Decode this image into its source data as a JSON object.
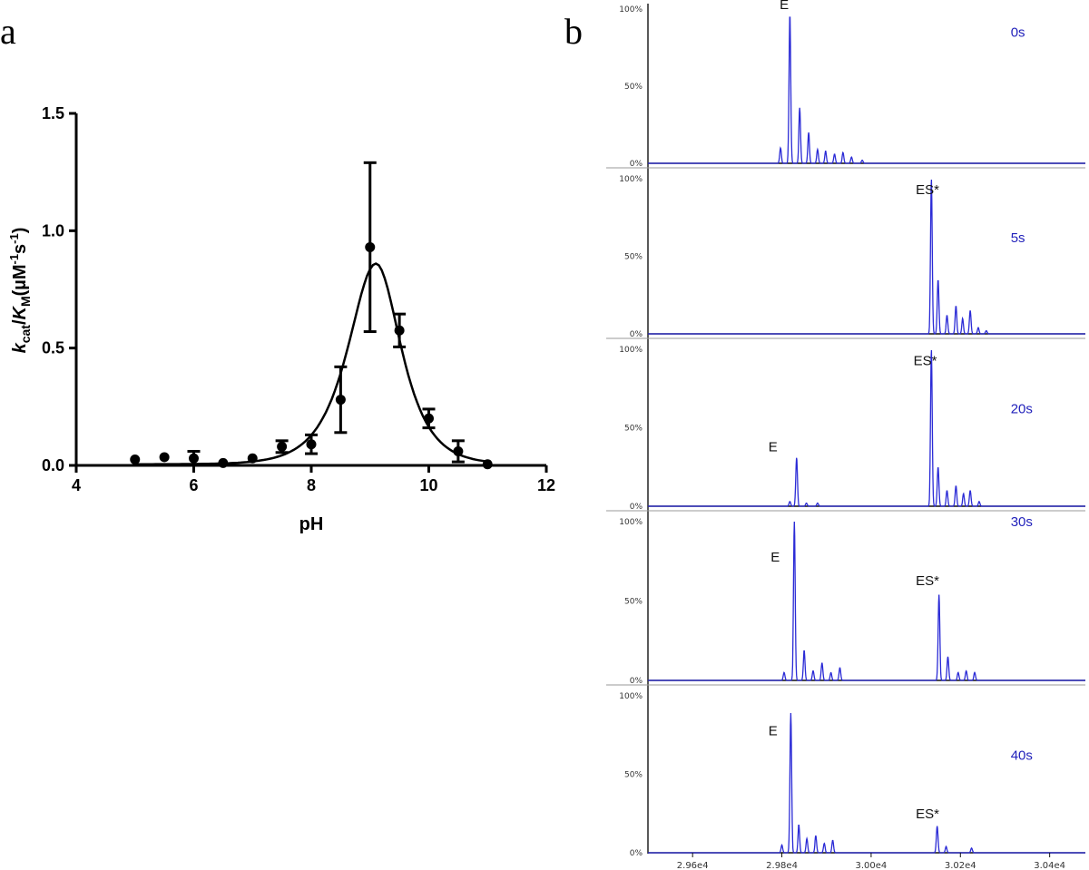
{
  "chart_data": [
    {
      "panel": "a",
      "type": "scatter",
      "title": "",
      "xlabel": "pH",
      "ylabel": "kcat/KM(µM-1s-1)",
      "ylabel_parts": {
        "k": "k",
        "cat": "cat",
        "slash": "/",
        "K": "K",
        "M": "M",
        "unit_open": "(µM",
        "exp1": "-1",
        "s": "s",
        "exp2": "-1",
        "unit_close": ")"
      },
      "xlim": [
        4,
        12
      ],
      "ylim": [
        0,
        1.5
      ],
      "xticks": [
        "4",
        "6",
        "8",
        "10",
        "12"
      ],
      "yticks": [
        "0.0",
        "0.5",
        "1.0",
        "1.5"
      ],
      "grid": false,
      "series": [
        {
          "x": [
            5,
            5.5,
            6,
            6.5,
            7,
            7.5,
            8,
            8.5,
            9,
            9.5,
            10,
            10.5,
            11
          ],
          "y": [
            0.025,
            0.035,
            0.03,
            0.01,
            0.03,
            0.08,
            0.09,
            0.28,
            0.93,
            0.575,
            0.2,
            0.06,
            0.005
          ],
          "err": [
            0,
            0,
            0.03,
            0,
            0,
            0.025,
            0.04,
            0.14,
            0.36,
            0.07,
            0.04,
            0.045,
            0
          ]
        }
      ],
      "fit_curve": {
        "peak_x": 9.1,
        "peak_y": 0.86,
        "baseline": 0.005
      }
    },
    {
      "panel": "b",
      "type": "line",
      "title": "",
      "xlim": [
        29500,
        30480
      ],
      "xticks": [
        "2.96e4",
        "2.98e4",
        "3.00e4",
        "3.02e4",
        "3.04e4"
      ],
      "xtick_values": [
        29600,
        29800,
        30000,
        30200,
        30400
      ],
      "yticks": [
        "100%",
        "50%",
        "0%"
      ],
      "line_color": "#2b2bd6",
      "spectra": [
        {
          "time": "0s",
          "labels": [
            {
              "text": "E",
              "x": 29795,
              "y": 100
            }
          ],
          "peaks": [
            {
              "x": 29818,
              "h": 97
            },
            {
              "x": 29840,
              "h": 36
            },
            {
              "x": 29860,
              "h": 20
            },
            {
              "x": 29880,
              "h": 9
            },
            {
              "x": 29898,
              "h": 8
            },
            {
              "x": 29918,
              "h": 6
            },
            {
              "x": 29937,
              "h": 7
            },
            {
              "x": 29956,
              "h": 4
            },
            {
              "x": 29980,
              "h": 2
            },
            {
              "x": 29797,
              "h": 10
            }
          ]
        },
        {
          "time": "5s",
          "labels": [
            {
              "text": "ES*",
              "x": 30100,
              "y": 90
            }
          ],
          "peaks": [
            {
              "x": 30135,
              "h": 100
            },
            {
              "x": 30150,
              "h": 35
            },
            {
              "x": 30170,
              "h": 12
            },
            {
              "x": 30190,
              "h": 18
            },
            {
              "x": 30205,
              "h": 10
            },
            {
              "x": 30222,
              "h": 15
            },
            {
              "x": 30240,
              "h": 4
            },
            {
              "x": 30258,
              "h": 2
            }
          ]
        },
        {
          "time": "20s",
          "labels": [
            {
              "text": "E",
              "x": 29770,
              "y": 35
            },
            {
              "text": "ES*",
              "x": 30095,
              "y": 90
            }
          ],
          "peaks": [
            {
              "x": 29833,
              "h": 31
            },
            {
              "x": 29818,
              "h": 3
            },
            {
              "x": 29855,
              "h": 2
            },
            {
              "x": 29880,
              "h": 2
            },
            {
              "x": 30135,
              "h": 100
            },
            {
              "x": 30150,
              "h": 25
            },
            {
              "x": 30170,
              "h": 10
            },
            {
              "x": 30190,
              "h": 13
            },
            {
              "x": 30207,
              "h": 8
            },
            {
              "x": 30222,
              "h": 10
            },
            {
              "x": 30242,
              "h": 3
            }
          ]
        },
        {
          "time": "30s",
          "labels": [
            {
              "text": "E",
              "x": 29775,
              "y": 75
            },
            {
              "text": "ES*",
              "x": 30100,
              "y": 60
            }
          ],
          "peaks": [
            {
              "x": 29828,
              "h": 100
            },
            {
              "x": 29850,
              "h": 19
            },
            {
              "x": 29870,
              "h": 6
            },
            {
              "x": 29890,
              "h": 11
            },
            {
              "x": 29910,
              "h": 5
            },
            {
              "x": 29930,
              "h": 8
            },
            {
              "x": 29805,
              "h": 5
            },
            {
              "x": 30152,
              "h": 54
            },
            {
              "x": 30172,
              "h": 15
            },
            {
              "x": 30195,
              "h": 5
            },
            {
              "x": 30213,
              "h": 6
            },
            {
              "x": 30232,
              "h": 5
            }
          ]
        },
        {
          "time": "40s",
          "labels": [
            {
              "text": "E",
              "x": 29770,
              "y": 75
            },
            {
              "text": "ES*",
              "x": 30100,
              "y": 22
            }
          ],
          "peaks": [
            {
              "x": 29820,
              "h": 89
            },
            {
              "x": 29838,
              "h": 18
            },
            {
              "x": 29856,
              "h": 9
            },
            {
              "x": 29876,
              "h": 11
            },
            {
              "x": 29895,
              "h": 6
            },
            {
              "x": 29914,
              "h": 8
            },
            {
              "x": 29800,
              "h": 5
            },
            {
              "x": 30148,
              "h": 17
            },
            {
              "x": 30168,
              "h": 4
            },
            {
              "x": 30225,
              "h": 3
            }
          ]
        }
      ]
    }
  ],
  "panels": {
    "a": "a",
    "b": "b"
  }
}
